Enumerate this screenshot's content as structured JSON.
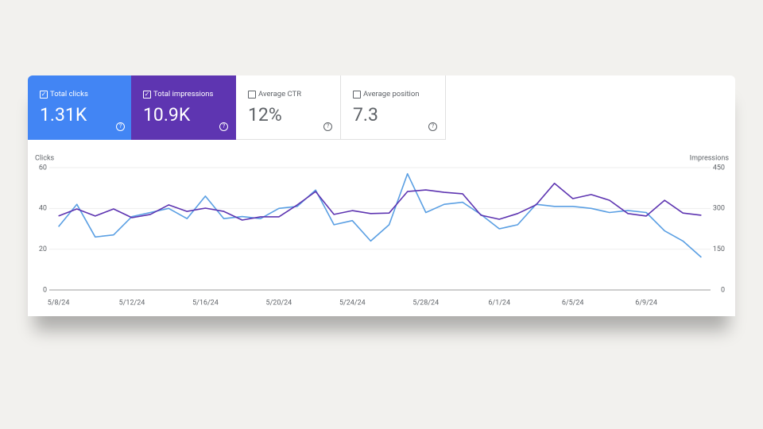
{
  "cards": [
    {
      "label": "Total clicks",
      "value": "1.31K"
    },
    {
      "label": "Total impressions",
      "value": "10.9K"
    },
    {
      "label": "Average CTR",
      "value": "12%"
    },
    {
      "label": "Average position",
      "value": "7.3"
    }
  ],
  "chart_data": {
    "type": "line",
    "ylabel": "Clicks",
    "y2label": "Impressions",
    "categories": [
      "5/8/24",
      null,
      null,
      null,
      "5/12/24",
      null,
      null,
      null,
      "5/16/24",
      null,
      null,
      null,
      "5/20/24",
      null,
      null,
      null,
      "5/24/24",
      null,
      null,
      null,
      "5/28/24",
      null,
      null,
      null,
      "6/1/24",
      null,
      null,
      null,
      "6/5/24",
      null,
      null,
      null,
      "6/9/24",
      null,
      null,
      null
    ],
    "series": [
      {
        "name": "Clicks",
        "color": "#5a9fe3",
        "axis": "y",
        "values": [
          31,
          42,
          26,
          27,
          36,
          38,
          40,
          35,
          46,
          35,
          36,
          35,
          40,
          41,
          49,
          32,
          34,
          24,
          32,
          57,
          38,
          42,
          43,
          37,
          30,
          32,
          42,
          41,
          41,
          40,
          38,
          39,
          38,
          29,
          24,
          16
        ]
      },
      {
        "name": "Impressions",
        "color": "#5e35b1",
        "axis": "y2",
        "values": [
          272,
          298,
          272,
          298,
          266,
          278,
          313,
          289,
          301,
          289,
          257,
          269,
          269,
          313,
          362,
          278,
          292,
          281,
          283,
          362,
          368,
          359,
          354,
          275,
          260,
          281,
          313,
          392,
          336,
          351,
          330,
          281,
          272,
          330,
          283,
          275
        ]
      }
    ],
    "ylim": [
      0,
      60
    ],
    "yticks": [
      0,
      20,
      40,
      60
    ],
    "y2lim": [
      0,
      450
    ],
    "y2ticks": [
      0,
      150,
      300,
      450
    ],
    "grid": true
  }
}
